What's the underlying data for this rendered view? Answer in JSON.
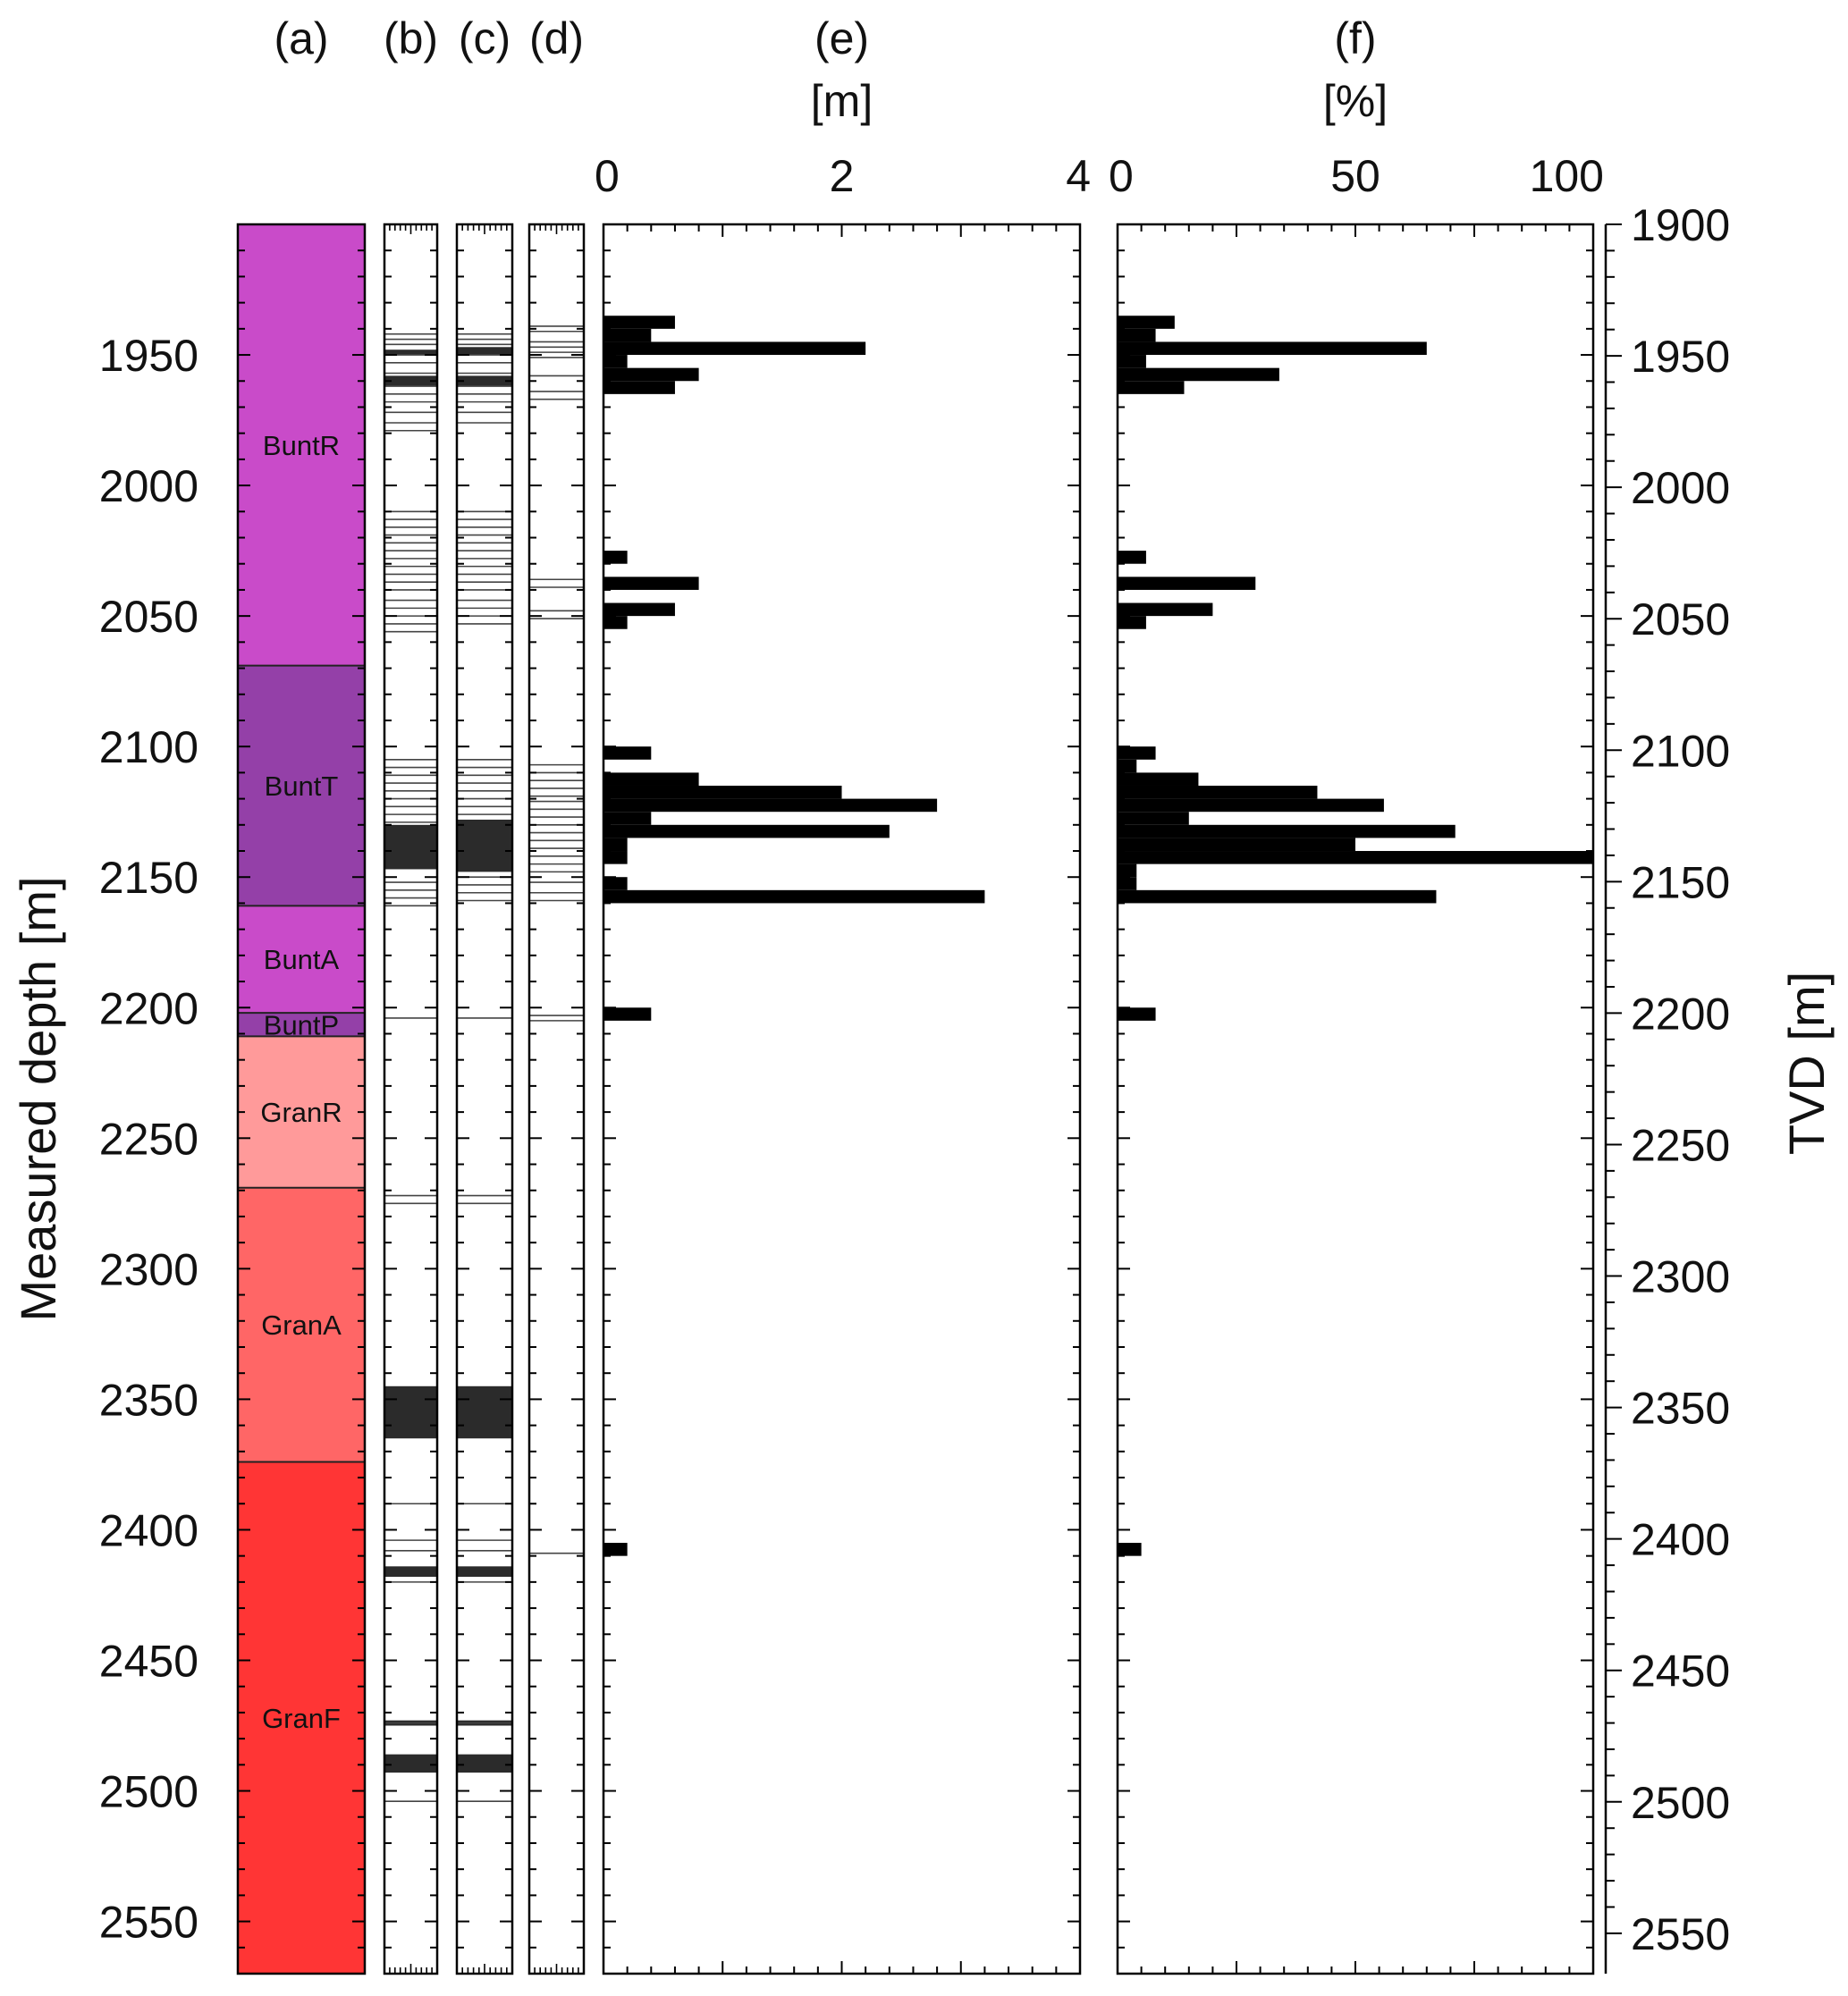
{
  "chart_data": {
    "type": "bar",
    "depth_range": [
      1900,
      2570
    ],
    "y_axis_left": {
      "label": "Measured depth [m]",
      "ticks": [
        1950,
        2000,
        2050,
        2100,
        2150,
        2200,
        2250,
        2300,
        2350,
        2400,
        2450,
        2500,
        2550
      ]
    },
    "y_axis_right": {
      "label": "TVD [m]",
      "ticks": [
        1900,
        1950,
        2000,
        2050,
        2100,
        2150,
        2200,
        2250,
        2300,
        2350,
        2400,
        2450,
        2500,
        2550
      ],
      "md_to_tvd_offset": -12
    },
    "panels": {
      "a": {
        "header": "(a)"
      },
      "b": {
        "header": "(b)"
      },
      "c": {
        "header": "(c)"
      },
      "d": {
        "header": "(d)"
      },
      "e": {
        "header": "(e)",
        "unit": "[m]",
        "xlim": [
          0,
          4
        ],
        "ticks": [
          0,
          2,
          4
        ]
      },
      "f": {
        "header": "(f)",
        "unit": "[%]",
        "xlim": [
          0,
          100
        ],
        "ticks": [
          0,
          50,
          100
        ]
      }
    },
    "formations": [
      {
        "name": "BuntR",
        "top": 1900,
        "bottom": 2069,
        "color": "#c94bc9"
      },
      {
        "name": "BuntT",
        "top": 2069,
        "bottom": 2161,
        "color": "#9440a8"
      },
      {
        "name": "BuntA",
        "top": 2161,
        "bottom": 2202,
        "color": "#c94bc9"
      },
      {
        "name": "BuntP",
        "top": 2202,
        "bottom": 2211,
        "color": "#9440a8"
      },
      {
        "name": "GranR",
        "top": 2211,
        "bottom": 2269,
        "color": "#ff9a9a"
      },
      {
        "name": "GranA",
        "top": 2269,
        "bottom": 2374,
        "color": "#ff6666"
      },
      {
        "name": "GranF",
        "top": 2374,
        "bottom": 2570,
        "color": "#ff3535"
      }
    ],
    "fractures_b": {
      "lines": [
        1942,
        1944,
        1946,
        1950,
        1953,
        1957,
        1962,
        1965,
        1968,
        1972,
        1976,
        1979,
        2010,
        2013,
        2016,
        2019,
        2022,
        2025,
        2028,
        2031,
        2034,
        2037,
        2040,
        2044,
        2047,
        2050,
        2053,
        2056,
        2105,
        2108,
        2111,
        2114,
        2117,
        2120,
        2123,
        2126,
        2129,
        2152,
        2155,
        2158,
        2161,
        2204,
        2272,
        2275,
        2390,
        2404,
        2408,
        2420,
        2474,
        2504
      ],
      "zones": [
        [
          1948,
          1950
        ],
        [
          1958,
          1962
        ],
        [
          2130,
          2147
        ],
        [
          2345,
          2365
        ],
        [
          2414,
          2418
        ],
        [
          2473,
          2475
        ],
        [
          2486,
          2493
        ]
      ]
    },
    "fractures_c": {
      "lines": [
        1942,
        1944,
        1946,
        1950,
        1953,
        1957,
        1962,
        1965,
        1968,
        1972,
        1976,
        2010,
        2013,
        2016,
        2019,
        2022,
        2025,
        2028,
        2031,
        2034,
        2037,
        2040,
        2044,
        2047,
        2050,
        2053,
        2105,
        2108,
        2111,
        2114,
        2117,
        2120,
        2123,
        2126,
        2150,
        2153,
        2156,
        2159,
        2204,
        2272,
        2275,
        2390,
        2404,
        2408,
        2420,
        2474,
        2504
      ],
      "zones": [
        [
          1947,
          1950
        ],
        [
          1958,
          1962
        ],
        [
          2128,
          2148
        ],
        [
          2345,
          2365
        ],
        [
          2414,
          2418
        ],
        [
          2473,
          2475
        ],
        [
          2486,
          2493
        ]
      ]
    },
    "fractures_d": {
      "lines": [
        1939,
        1941,
        1945,
        1947,
        1949,
        1951,
        1958,
        1964,
        1967,
        2036,
        2039,
        2048,
        2051,
        2107,
        2110,
        2113,
        2116,
        2119,
        2121,
        2124,
        2127,
        2130,
        2133,
        2136,
        2139,
        2142,
        2145,
        2148,
        2152,
        2156,
        2159,
        2203,
        2205,
        2409
      ]
    },
    "series_e": {
      "name": "",
      "bars": [
        {
          "top": 1935,
          "bottom": 1940,
          "value": 0.6
        },
        {
          "top": 1940,
          "bottom": 1945,
          "value": 0.4
        },
        {
          "top": 1945,
          "bottom": 1950,
          "value": 2.2
        },
        {
          "top": 1950,
          "bottom": 1955,
          "value": 0.2
        },
        {
          "top": 1955,
          "bottom": 1960,
          "value": 0.8
        },
        {
          "top": 1960,
          "bottom": 1965,
          "value": 0.6
        },
        {
          "top": 2025,
          "bottom": 2030,
          "value": 0.2
        },
        {
          "top": 2035,
          "bottom": 2040,
          "value": 0.8
        },
        {
          "top": 2045,
          "bottom": 2050,
          "value": 0.6
        },
        {
          "top": 2050,
          "bottom": 2055,
          "value": 0.2
        },
        {
          "top": 2100,
          "bottom": 2105,
          "value": 0.4
        },
        {
          "top": 2110,
          "bottom": 2115,
          "value": 0.8
        },
        {
          "top": 2115,
          "bottom": 2120,
          "value": 2.0
        },
        {
          "top": 2120,
          "bottom": 2125,
          "value": 2.8
        },
        {
          "top": 2125,
          "bottom": 2130,
          "value": 0.4
        },
        {
          "top": 2130,
          "bottom": 2135,
          "value": 2.4
        },
        {
          "top": 2135,
          "bottom": 2140,
          "value": 0.2
        },
        {
          "top": 2140,
          "bottom": 2145,
          "value": 0.2
        },
        {
          "top": 2150,
          "bottom": 2155,
          "value": 0.2
        },
        {
          "top": 2155,
          "bottom": 2160,
          "value": 3.2
        },
        {
          "top": 2200,
          "bottom": 2205,
          "value": 0.4
        },
        {
          "top": 2405,
          "bottom": 2410,
          "value": 0.2
        }
      ]
    },
    "series_f": {
      "name": "",
      "bars": [
        {
          "top": 1935,
          "bottom": 1940,
          "value": 12
        },
        {
          "top": 1940,
          "bottom": 1945,
          "value": 8
        },
        {
          "top": 1945,
          "bottom": 1950,
          "value": 65
        },
        {
          "top": 1950,
          "bottom": 1955,
          "value": 6
        },
        {
          "top": 1955,
          "bottom": 1960,
          "value": 34
        },
        {
          "top": 1960,
          "bottom": 1965,
          "value": 14
        },
        {
          "top": 2025,
          "bottom": 2030,
          "value": 6
        },
        {
          "top": 2035,
          "bottom": 2040,
          "value": 29
        },
        {
          "top": 2045,
          "bottom": 2050,
          "value": 20
        },
        {
          "top": 2050,
          "bottom": 2055,
          "value": 6
        },
        {
          "top": 2100,
          "bottom": 2105,
          "value": 8
        },
        {
          "top": 2105,
          "bottom": 2110,
          "value": 4
        },
        {
          "top": 2110,
          "bottom": 2115,
          "value": 17
        },
        {
          "top": 2115,
          "bottom": 2120,
          "value": 42
        },
        {
          "top": 2120,
          "bottom": 2125,
          "value": 56
        },
        {
          "top": 2125,
          "bottom": 2130,
          "value": 15
        },
        {
          "top": 2130,
          "bottom": 2135,
          "value": 71
        },
        {
          "top": 2135,
          "bottom": 2140,
          "value": 50
        },
        {
          "top": 2140,
          "bottom": 2145,
          "value": 100
        },
        {
          "top": 2145,
          "bottom": 2150,
          "value": 4
        },
        {
          "top": 2150,
          "bottom": 2155,
          "value": 4
        },
        {
          "top": 2155,
          "bottom": 2160,
          "value": 67
        },
        {
          "top": 2200,
          "bottom": 2205,
          "value": 8
        },
        {
          "top": 2405,
          "bottom": 2410,
          "value": 5
        }
      ]
    }
  }
}
